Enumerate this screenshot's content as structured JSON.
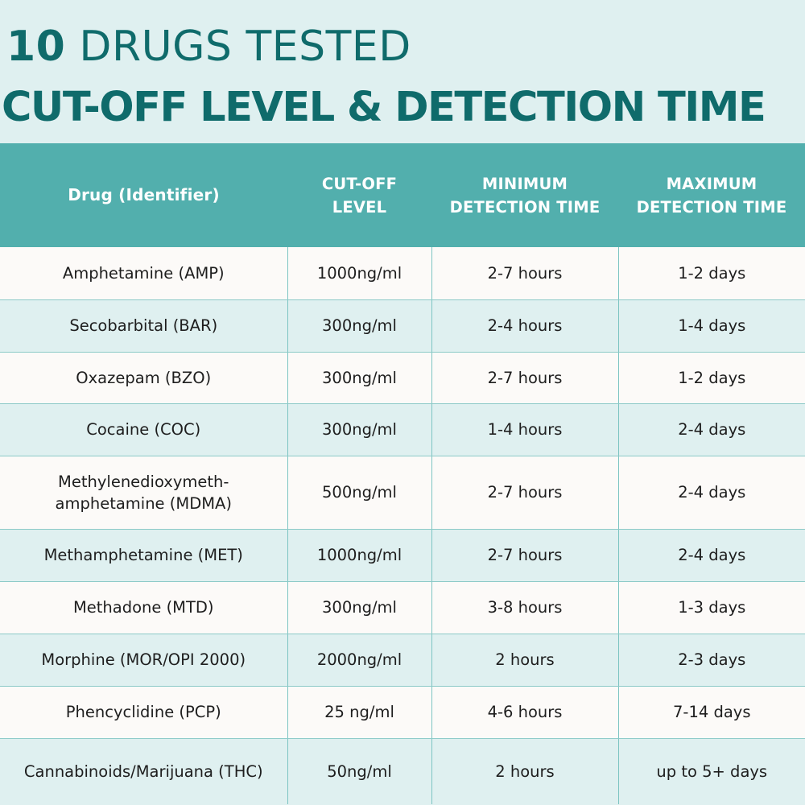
{
  "title": {
    "line1_number": "10",
    "line1_text": "DRUGS TESTED",
    "line2": "CUT-OFF LEVEL & DETECTION TIME"
  },
  "table": {
    "headers": [
      "Drug (Identifier)",
      "CUT-OFF LEVEL",
      "MINIMUM DETECTION TIME",
      "MAXIMUM DETECTION TIME"
    ],
    "rows": [
      [
        "Amphetamine (AMP)",
        "1000ng/ml",
        "2-7 hours",
        "1-2 days"
      ],
      [
        "Secobarbital (BAR)",
        "300ng/ml",
        "2-4 hours",
        "1-4 days"
      ],
      [
        "Oxazepam (BZO)",
        "300ng/ml",
        "2-7 hours",
        "1-2 days"
      ],
      [
        "Cocaine (COC)",
        "300ng/ml",
        "1-4 hours",
        "2-4 days"
      ],
      [
        "Methylenedioxymeth-amphetamine (MDMA)",
        "500ng/ml",
        "2-7 hours",
        "2-4 days"
      ],
      [
        "Methamphetamine (MET)",
        "1000ng/ml",
        "2-7 hours",
        "2-4 days"
      ],
      [
        "Methadone (MTD)",
        "300ng/ml",
        "3-8 hours",
        "1-3 days"
      ],
      [
        "Morphine (MOR/OPI 2000)",
        "2000ng/ml",
        "2 hours",
        "2-3 days"
      ],
      [
        "Phencyclidine (PCP)",
        "25 ng/ml",
        "4-6 hours",
        "7-14 days"
      ],
      [
        "Cannabinoids/Marijuana (THC)",
        "50ng/ml",
        "2 hours",
        "up to 5+ days"
      ]
    ]
  },
  "colors": {
    "title": "#0f6b6b",
    "header_bg": "#52afad",
    "row_light": "#fcfaf8",
    "row_tint": "#dff0f0"
  }
}
